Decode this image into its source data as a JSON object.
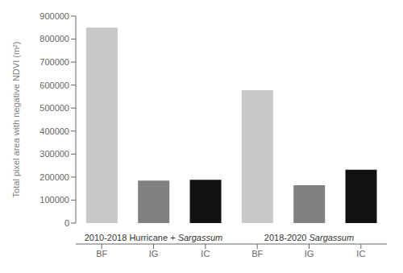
{
  "chart_data": {
    "type": "bar",
    "categories": [
      "BF",
      "IG",
      "IC",
      "BF",
      "IG",
      "IC"
    ],
    "values": [
      850000,
      185000,
      188000,
      578000,
      165000,
      232000
    ],
    "colors": [
      "#c8c8c8",
      "#808080",
      "#111111",
      "#c8c8c8",
      "#808080",
      "#111111"
    ],
    "ylabel": "Total pixel area with negative NDVI (m²)",
    "ylim": [
      0,
      900000
    ],
    "yticks": [
      0,
      100000,
      200000,
      300000,
      400000,
      500000,
      600000,
      700000,
      800000,
      900000
    ],
    "annotations": [
      "2010-2018 Hurricane + Sargassum",
      "2018-2020 Sargassum"
    ]
  }
}
